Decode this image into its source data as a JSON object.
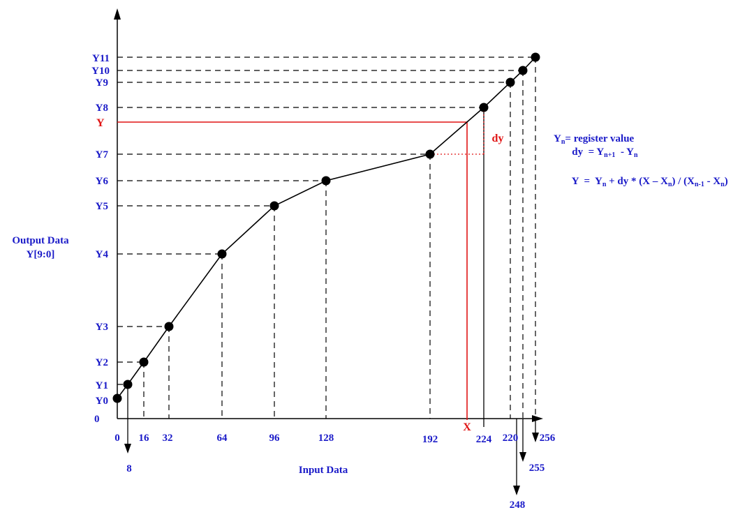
{
  "axes": {
    "y_title_line1": "Output Data",
    "y_title_line2": "Y[9:0]",
    "x_title": "Input Data",
    "origin_label": "0"
  },
  "y_labels": [
    "Y0",
    "Y1",
    "Y2",
    "Y3",
    "Y4",
    "Y5",
    "Y6",
    "Y7",
    "Y8",
    "Y9",
    "Y10",
    "Y11"
  ],
  "x_labels": {
    "x0": "0",
    "x8": "8",
    "x16": "16",
    "x32": "32",
    "x64": "64",
    "x96": "96",
    "x128": "128",
    "x192": "192",
    "x224": "224",
    "x220": "220",
    "x248": "248",
    "x255": "255",
    "x256": "256"
  },
  "interp": {
    "y_label": "Y",
    "x_label": "X",
    "dy_label": "dy"
  },
  "formula": {
    "line1_lhs": "Y",
    "line1_sub": "n",
    "line1_rhs": "= register value",
    "line2_lhs": "dy  = Y",
    "line2_sub1": "n+1",
    "line2_mid": "  - Y",
    "line2_sub2": "n",
    "line3_a": "Y  =  Y",
    "line3_sub1": "n",
    "line3_b": " + dy * (X – X",
    "line3_sub2": "n",
    "line3_c": ") / (X",
    "line3_sub3": "n-1",
    "line3_d": " - X",
    "line3_sub4": "n",
    "line3_e": ")"
  },
  "colors": {
    "axis": "#000000",
    "labels": "#1a1ac8",
    "highlight": "#e01414"
  }
}
